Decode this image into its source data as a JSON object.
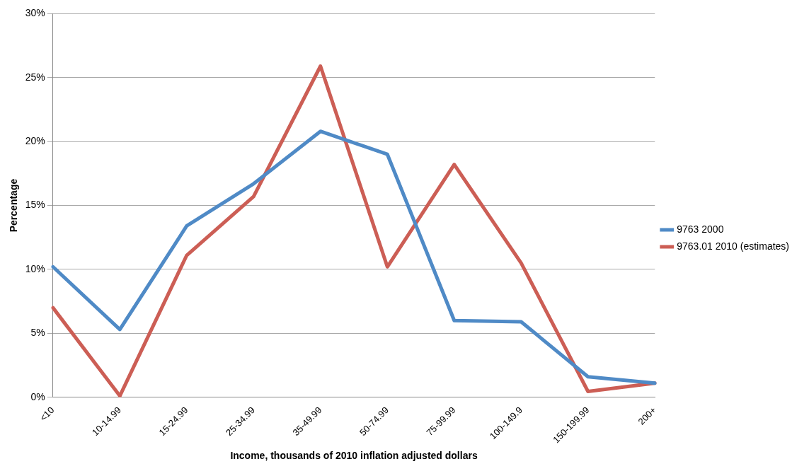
{
  "chart_data": {
    "type": "line",
    "xlabel": "Income, thousands of 2010 inflation adjusted dollars",
    "ylabel": "Percentage",
    "categories": [
      "<10",
      "10-14.99",
      "15-24.99",
      "25-34.99",
      "35-49.99",
      "50-74.99",
      "75-99.99",
      "100-149.9",
      "150-199.99",
      "200+"
    ],
    "series": [
      {
        "name": "9763 2000",
        "color": "#4f8ac6",
        "values": [
          10.2,
          5.3,
          13.4,
          16.7,
          20.8,
          19.0,
          6.0,
          5.9,
          1.6,
          1.1
        ]
      },
      {
        "name": "9763.01 2010 (estimates)",
        "color": "#cc5e55",
        "values": [
          7.0,
          0.1,
          11.1,
          15.7,
          25.9,
          10.2,
          18.2,
          10.5,
          0.45,
          1.1
        ]
      }
    ],
    "ylim": [
      0,
      30
    ],
    "yticks": [
      {
        "value": 0,
        "label": "0%"
      },
      {
        "value": 5,
        "label": "5%"
      },
      {
        "value": 10,
        "label": "10%"
      },
      {
        "value": 15,
        "label": "15%"
      },
      {
        "value": 20,
        "label": "20%"
      },
      {
        "value": 25,
        "label": "25%"
      },
      {
        "value": 30,
        "label": "30%"
      }
    ],
    "grid": "y",
    "legend": "right",
    "marker": "none",
    "line_style": "solid"
  }
}
